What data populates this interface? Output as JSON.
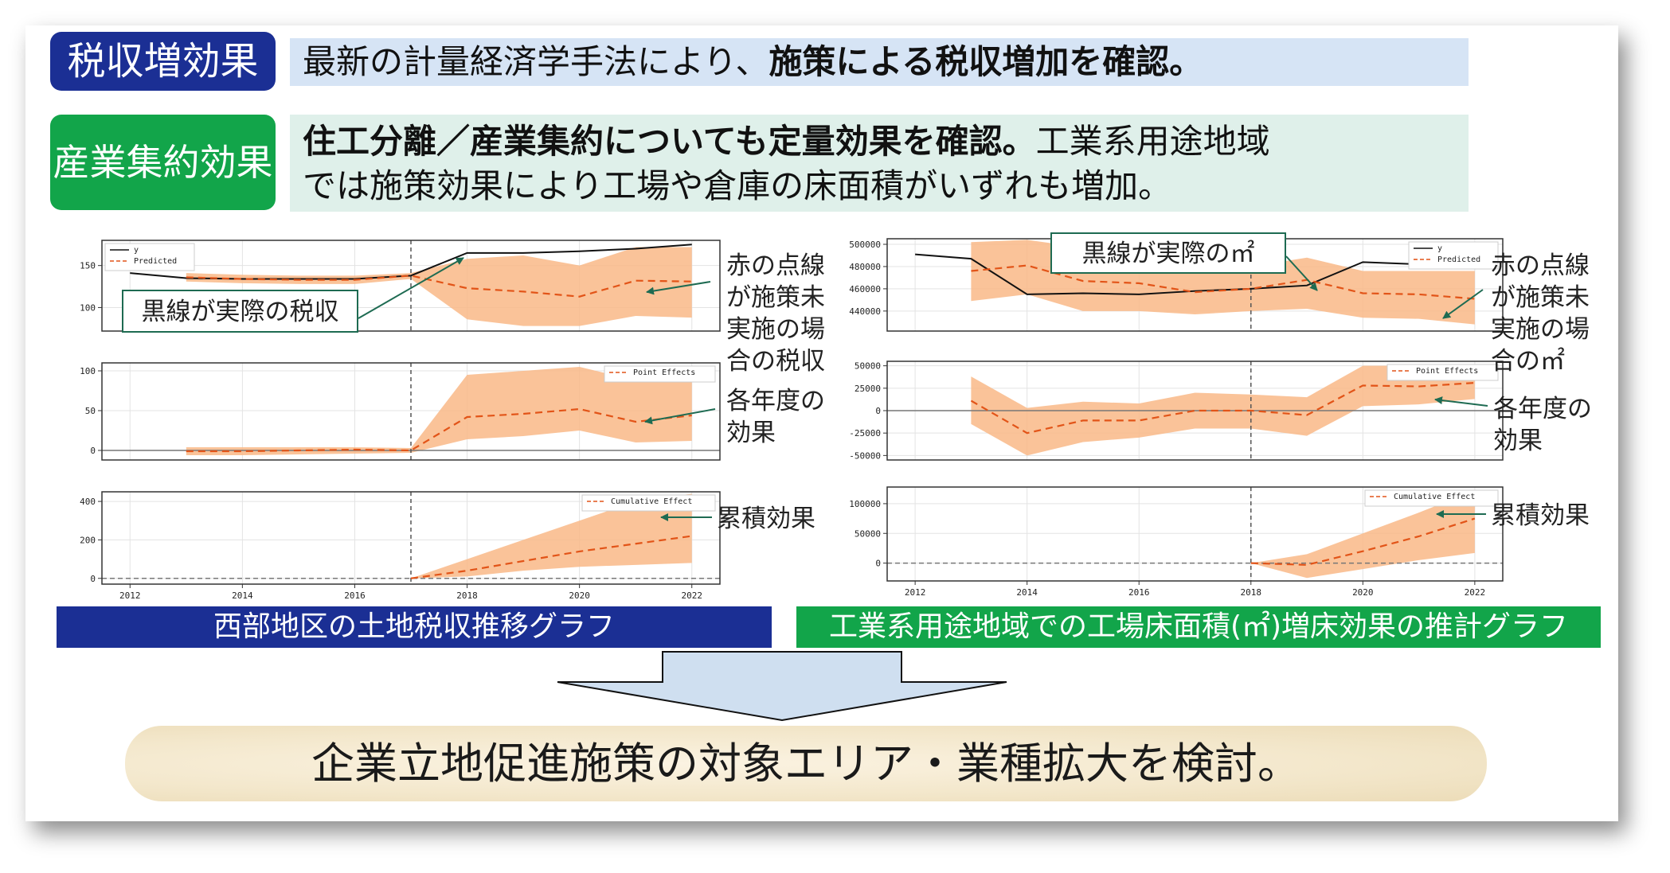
{
  "header": {
    "tax_badge": "税収増効果",
    "tax_text_regular": "最新の計量経済学手法により、",
    "tax_text_bold": "施策による税収増加を確認。",
    "industry_badge": "産業集約効果",
    "industry_text_bold": "住工分離／産業集約についても定量効果を確認。",
    "industry_text_line1_rest": "工業系用途地域",
    "industry_text_line2": "では施策効果により工場や倉庫の床面積がいずれも増加。"
  },
  "colors": {
    "navy": "#1b2f94",
    "green": "#12a54a",
    "banner_blue": "#d6e4f5",
    "banner_mint": "#dff0ea",
    "band": "#f9b987",
    "red_dash": "#e25418",
    "line": "#111111",
    "arrow_fill": "#cfdff0"
  },
  "charts": {
    "left_caption": "西部地区の土地税収推移グラフ",
    "right_caption": "工業系用途地域での工場床面積(㎡)増床効果の推計グラフ"
  },
  "callouts": {
    "left_black": "黒線が実際の税収",
    "left_red": [
      "赤の点線",
      "が施策未",
      "実施の場",
      "合の税収"
    ],
    "left_point": [
      "各年度の",
      "効果"
    ],
    "left_cum": "累積効果",
    "right_black": "黒線が実際の㎡",
    "right_red": [
      "赤の点線",
      "が施策未",
      "実施の場",
      "合の㎡"
    ],
    "right_point": [
      "各年度の",
      "効果"
    ],
    "right_cum": "累積効果"
  },
  "conclusion": "企業立地促進施策の対象エリア・業種拡大を検討。",
  "chart_data": [
    {
      "type": "line",
      "x": [
        2012,
        2013,
        2014,
        2015,
        2016,
        2017,
        2018,
        2019,
        2020,
        2021,
        2022
      ],
      "xlim": [
        2011.5,
        2022.5
      ],
      "intervention_x": 2017,
      "grid": true,
      "legend_position": "top-left",
      "panels": [
        {
          "id": "original",
          "ylim": [
            72,
            180
          ],
          "yticks": [
            100,
            150
          ],
          "legend": [
            "y",
            "Predicted"
          ],
          "series": [
            {
              "name": "y",
              "x": [
                2012,
                2013,
                2014,
                2015,
                2016,
                2017,
                2018,
                2019,
                2020,
                2021,
                2022
              ],
              "values": [
                141,
                135,
                134,
                134,
                134,
                138,
                165,
                165,
                167,
                170,
                175
              ]
            },
            {
              "name": "Predicted",
              "x": [
                2013,
                2014,
                2015,
                2016,
                2017,
                2018,
                2019,
                2020,
                2021,
                2022
              ],
              "values": [
                136,
                134,
                133,
                133,
                138,
                123,
                119,
                113,
                132,
                131
              ]
            }
          ],
          "band": {
            "x": [
              2013,
              2014,
              2015,
              2016,
              2017,
              2018,
              2019,
              2020,
              2021,
              2022
            ],
            "upper": [
              141,
              139,
              138,
              138,
              141,
              158,
              162,
              150,
              172,
              172
            ],
            "lower": [
              131,
              129,
              128,
              128,
              134,
              86,
              78,
              78,
              90,
              88
            ]
          }
        },
        {
          "id": "pointwise",
          "ylim": [
            -12,
            110
          ],
          "yticks": [
            0,
            50,
            100
          ],
          "legend": [
            "Point Effects"
          ],
          "series": [
            {
              "name": "Point Effects",
              "x": [
                2013,
                2014,
                2015,
                2016,
                2017,
                2018,
                2019,
                2020,
                2021,
                2022
              ],
              "values": [
                -1,
                -1,
                0,
                1,
                0,
                42,
                46,
                52,
                36,
                44
              ]
            }
          ],
          "band": {
            "x": [
              2013,
              2014,
              2015,
              2016,
              2017,
              2018,
              2019,
              2020,
              2021,
              2022
            ],
            "upper": [
              4,
              4,
              4,
              4,
              3,
              95,
              100,
              105,
              88,
              95
            ],
            "lower": [
              -6,
              -6,
              -5,
              -4,
              -3,
              14,
              18,
              25,
              10,
              12
            ]
          },
          "zero_line": "solid"
        },
        {
          "id": "cumulative",
          "ylim": [
            -30,
            450
          ],
          "yticks": [
            0,
            200,
            400
          ],
          "xticks": [
            2012,
            2014,
            2016,
            2018,
            2020,
            2022
          ],
          "legend": [
            "Cumulative Effect"
          ],
          "series": [
            {
              "name": "Cumulative Effect",
              "x": [
                2017,
                2018,
                2019,
                2020,
                2021,
                2022
              ],
              "values": [
                0,
                40,
                90,
                140,
                180,
                220
              ]
            }
          ],
          "band": {
            "x": [
              2017,
              2018,
              2019,
              2020,
              2021,
              2022
            ],
            "upper": [
              0,
              100,
              200,
              300,
              400,
              440
            ],
            "lower": [
              0,
              10,
              40,
              60,
              70,
              80
            ]
          },
          "zero_line": "dashed"
        }
      ]
    },
    {
      "type": "line",
      "x": [
        2012,
        2013,
        2014,
        2015,
        2016,
        2017,
        2018,
        2019,
        2020,
        2021,
        2022
      ],
      "xlim": [
        2011.5,
        2022.5
      ],
      "intervention_x": 2018,
      "grid": true,
      "legend_position": "top-right",
      "panels": [
        {
          "id": "original",
          "ylim": [
            422000,
            505000
          ],
          "yticks": [
            440000,
            460000,
            480000,
            500000
          ],
          "legend": [
            "y",
            "Predicted"
          ],
          "series": [
            {
              "name": "y",
              "x": [
                2012,
                2013,
                2014,
                2015,
                2016,
                2017,
                2018,
                2019,
                2020,
                2021,
                2022
              ],
              "values": [
                491000,
                487000,
                455000,
                456000,
                455000,
                458000,
                460000,
                463000,
                484000,
                482000,
                482000
              ]
            },
            {
              "name": "Predicted",
              "x": [
                2013,
                2014,
                2015,
                2016,
                2017,
                2018,
                2019,
                2020,
                2021,
                2022
              ],
              "values": [
                476000,
                481000,
                467000,
                465000,
                457000,
                460000,
                468000,
                456000,
                455000,
                451000
              ]
            }
          ],
          "band": {
            "x": [
              2013,
              2014,
              2015,
              2016,
              2017,
              2018,
              2019,
              2020,
              2021,
              2022
            ],
            "upper": [
              502000,
              504000,
              497000,
              492000,
              483000,
              480000,
              488000,
              476000,
              476000,
              476000
            ],
            "lower": [
              449000,
              455000,
              440000,
              440000,
              437000,
              440000,
              442000,
              434000,
              433000,
              428000
            ]
          }
        },
        {
          "id": "pointwise",
          "ylim": [
            -55000,
            55000
          ],
          "yticks": [
            -50000,
            -25000,
            0,
            25000,
            50000
          ],
          "legend": [
            "Point Effects"
          ],
          "series": [
            {
              "name": "Point Effects",
              "x": [
                2013,
                2014,
                2015,
                2016,
                2017,
                2018,
                2019,
                2020,
                2021,
                2022
              ],
              "values": [
                11000,
                -25000,
                -11000,
                -11000,
                0,
                0,
                -5000,
                28000,
                27000,
                31000
              ]
            }
          ],
          "band": {
            "x": [
              2013,
              2014,
              2015,
              2016,
              2017,
              2018,
              2019,
              2020,
              2021,
              2022
            ],
            "upper": [
              38000,
              3000,
              10000,
              8000,
              20000,
              18000,
              15000,
              50000,
              50000,
              44000
            ],
            "lower": [
              -15000,
              -50000,
              -35000,
              -30000,
              -20000,
              -20000,
              -28000,
              5000,
              7000,
              13000
            ]
          },
          "zero_line": "solid"
        },
        {
          "id": "cumulative",
          "ylim": [
            -30000,
            128000
          ],
          "yticks": [
            0,
            50000,
            100000
          ],
          "xticks": [
            2012,
            2014,
            2016,
            2018,
            2020,
            2022
          ],
          "legend": [
            "Cumulative Effect"
          ],
          "series": [
            {
              "name": "Cumulative Effect",
              "x": [
                2018,
                2019,
                2020,
                2021,
                2022
              ],
              "values": [
                0,
                -3000,
                20000,
                45000,
                75000
              ]
            }
          ],
          "band": {
            "x": [
              2018,
              2019,
              2020,
              2021,
              2022
            ],
            "upper": [
              0,
              15000,
              50000,
              85000,
              122000
            ],
            "lower": [
              0,
              -25000,
              -10000,
              5000,
              17000
            ]
          },
          "zero_line": "dashed"
        }
      ]
    }
  ]
}
